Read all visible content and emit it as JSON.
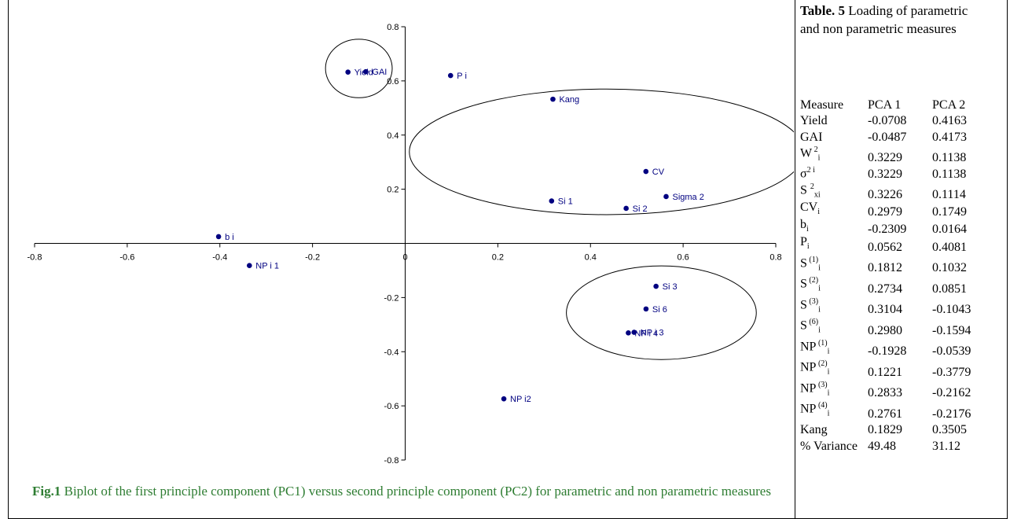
{
  "chart_data": {
    "type": "scatter",
    "title": "",
    "xlabel": "",
    "ylabel": "",
    "xlim": [
      -0.8,
      0.8
    ],
    "ylim": [
      -0.8,
      0.8
    ],
    "x_ticks": [
      "-0.8",
      "-0.6",
      "-0.4",
      "-0.2",
      "0",
      "0.2",
      "0.4",
      "0.6",
      "0.8"
    ],
    "y_ticks": [
      "0.8",
      "0.6",
      "0.4",
      "0.2",
      "0",
      "-0.2",
      "-0.4",
      "-0.6",
      "-0.8"
    ],
    "x_tick_values": [
      -0.8,
      -0.6,
      -0.4,
      -0.2,
      0,
      0.2,
      0.4,
      0.6,
      0.8
    ],
    "y_tick_values": [
      0.8,
      0.6,
      0.4,
      0.2,
      0,
      -0.2,
      -0.4,
      -0.6,
      -0.8
    ],
    "grid": false,
    "legend": "none",
    "point_color": "#000080",
    "points": [
      {
        "label": "Yield",
        "x": -0.1235,
        "y": 0.6326
      },
      {
        "label": "GAI",
        "x": -0.085,
        "y": 0.6341
      },
      {
        "label": "P i",
        "x": 0.098,
        "y": 0.6198
      },
      {
        "label": "Kang",
        "x": 0.3189,
        "y": 0.5325
      },
      {
        "label": "CV",
        "x": 0.5197,
        "y": 0.2656
      },
      {
        "label": "Sigma 2",
        "x": 0.5633,
        "y": 0.1729
      },
      {
        "label": "Si 1",
        "x": 0.3161,
        "y": 0.1567
      },
      {
        "label": "Si 2",
        "x": 0.477,
        "y": 0.1293
      },
      {
        "label": "b i",
        "x": -0.4028,
        "y": 0.0249
      },
      {
        "label": "NP i 1",
        "x": -0.3363,
        "y": -0.0819
      },
      {
        "label": "Si 3",
        "x": 0.5415,
        "y": -0.1584
      },
      {
        "label": "Si 6",
        "x": 0.5199,
        "y": -0.2421
      },
      {
        "label": "NP i 3",
        "x": 0.4942,
        "y": -0.3284
      },
      {
        "label": "NP i 4",
        "x": 0.4817,
        "y": -0.3305
      },
      {
        "label": "NP i2",
        "x": 0.213,
        "y": -0.574
      }
    ],
    "ellipses": [
      {
        "cx": -0.1,
        "cy": 0.646,
        "rx": 0.072,
        "ry": 0.108
      },
      {
        "cx": 0.435,
        "cy": 0.338,
        "rx": 0.426,
        "ry": 0.232
      },
      {
        "cx": 0.553,
        "cy": -0.256,
        "rx": 0.205,
        "ry": 0.173
      }
    ]
  },
  "caption": {
    "label": "Fig.1",
    "text": " Biplot of the first principle component (PC1) versus second principle component (PC2) for parametric and non parametric measures"
  },
  "table": {
    "title_label": "Table. 5",
    "title_text": " Loading of parametric and non parametric measures",
    "headers": [
      "Measure",
      "PCA 1",
      "PCA 2"
    ],
    "rows": [
      {
        "measure": "Yield",
        "sub": "",
        "sup": "",
        "pca1": "-0.0708",
        "pca2": "0.4163"
      },
      {
        "measure": "GAI",
        "sub": "",
        "sup": "",
        "pca1": "-0.0487",
        "pca2": "0.4173"
      },
      {
        "measure": "W",
        "sub": "i",
        "sup": " 2",
        "pca1": "0.3229",
        "pca2": "0.1138"
      },
      {
        "measure": "σ",
        "sub": "",
        "sup": "2 i",
        "pca1": "0.3229",
        "pca2": "0.1138"
      },
      {
        "measure": "S ",
        "sub": "xi",
        "sup": "2",
        "pca1": "0.3226",
        "pca2": "0.1114"
      },
      {
        "measure": "CV",
        "sub": "i",
        "sup": "",
        "pca1": "0.2979",
        "pca2": "0.1749"
      },
      {
        "measure": "b",
        "sub": "i",
        "sup": "",
        "pca1": "-0.2309",
        "pca2": "0.0164"
      },
      {
        "measure": "P",
        "sub": "i",
        "sup": "",
        "pca1": "0.0562",
        "pca2": "0.4081"
      },
      {
        "measure": "S",
        "sub": "i",
        "sup": " (1)",
        "pca1": "0.1812",
        "pca2": "0.1032"
      },
      {
        "measure": "S",
        "sub": "i",
        "sup": " (2)",
        "pca1": "0.2734",
        "pca2": "0.0851"
      },
      {
        "measure": "S",
        "sub": "i",
        "sup": " (3)",
        "pca1": "0.3104",
        "pca2": "-0.1043"
      },
      {
        "measure": "S",
        "sub": "i",
        "sup": " (6)",
        "pca1": "0.2980",
        "pca2": "-0.1594"
      },
      {
        "measure": "NP",
        "sub": "i",
        "sup": " (1)",
        "pca1": "-0.1928",
        "pca2": "-0.0539"
      },
      {
        "measure": "NP",
        "sub": "i",
        "sup": " (2)",
        "pca1": "0.1221",
        "pca2": "-0.3779"
      },
      {
        "measure": "NP",
        "sub": "i",
        "sup": " (3)",
        "pca1": "0.2833",
        "pca2": "-0.2162"
      },
      {
        "measure": "NP",
        "sub": "i",
        "sup": " (4)",
        "pca1": "0.2761",
        "pca2": "-0.2176"
      },
      {
        "measure": "Kang",
        "sub": "",
        "sup": "",
        "pca1": "0.1829",
        "pca2": "0.3505"
      },
      {
        "measure": "% Variance",
        "sub": "",
        "sup": "",
        "pca1": "49.48",
        "pca2": "31.12"
      }
    ]
  },
  "colors": {
    "caption": "#2e7d32",
    "points": "#000080",
    "axes": "#000000"
  }
}
